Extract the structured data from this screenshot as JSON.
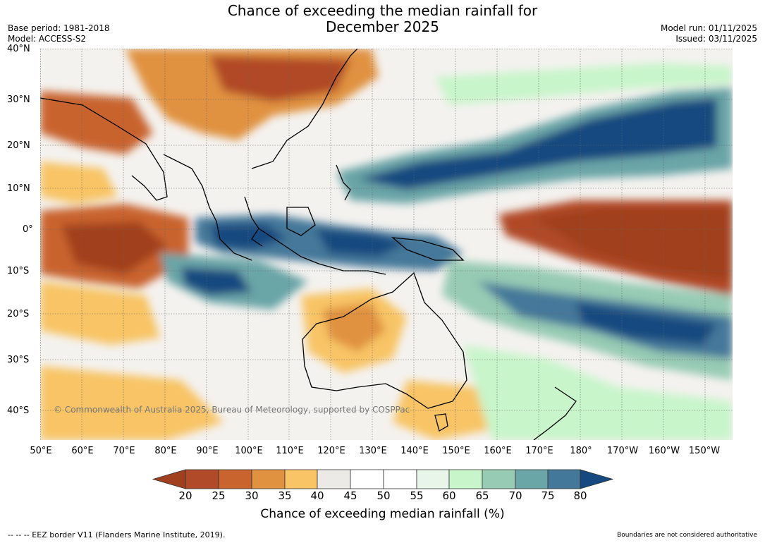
{
  "header": {
    "title_line1": "Chance of exceeding the median rainfall for",
    "title_line2": "December 2025",
    "base_period": "Base period: 1981-2018",
    "model": "Model: ACCESS-S2",
    "model_run": "Model run: 01/11/2025",
    "issued": "Issued: 03/11/2025"
  },
  "axes": {
    "lat_labels": [
      "40°N",
      "30°N",
      "20°N",
      "10°N",
      "0°",
      "10°S",
      "20°S",
      "30°S",
      "40°S"
    ],
    "lon_labels": [
      "50°E",
      "60°E",
      "70°E",
      "80°E",
      "90°E",
      "100°E",
      "110°E",
      "120°E",
      "130°E",
      "140°E",
      "150°E",
      "160°E",
      "170°E",
      "180°",
      "170°W",
      "160°W",
      "150°W"
    ]
  },
  "map": {
    "copyright": "© Commonwealth of Australia 2025, Bureau of Meteorology, supported by COSPPac",
    "regions": [
      {
        "name": "dry-east-asia",
        "value": 25
      },
      {
        "name": "dry-central-pacific",
        "value": 20
      },
      {
        "name": "wet-north-pacific",
        "value": 80
      },
      {
        "name": "wet-maritime-continent",
        "value": 75
      },
      {
        "name": "wet-south-pacific",
        "value": 70
      },
      {
        "name": "dry-indian-ocean",
        "value": 25
      },
      {
        "name": "wet-eastern-indian-ocean",
        "value": 75
      },
      {
        "name": "dry-western-australia",
        "value": 35
      }
    ]
  },
  "colorbar": {
    "ticks": [
      "20",
      "25",
      "30",
      "35",
      "40",
      "45",
      "50",
      "55",
      "60",
      "65",
      "70",
      "75",
      "80"
    ],
    "colors": [
      "#a1401e",
      "#b14a28",
      "#c9642f",
      "#e09241",
      "#f8c465",
      "#eceae6",
      "#ffffff",
      "#ffffff",
      "#e7f6e8",
      "#c8f5ca",
      "#97cbb4",
      "#6aa5a7",
      "#44789a",
      "#15497f"
    ],
    "label": "Chance of exceeding median rainfall (%)"
  },
  "footer": {
    "eez": "--  --  -- EEZ border V11 (Flanders Marine Institute, 2019).",
    "disclaimer": "Boundaries are not considered authoritative"
  }
}
